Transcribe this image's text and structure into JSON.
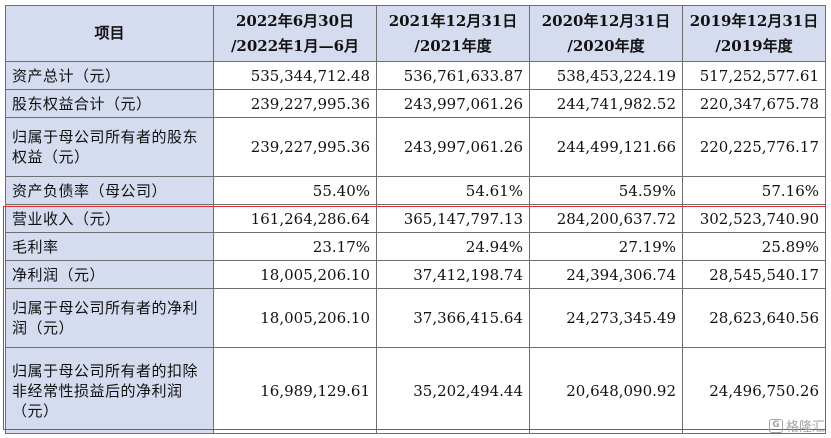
{
  "table": {
    "headers": [
      {
        "line1": "项目",
        "line2": ""
      },
      {
        "line1": "2022年6月30日",
        "line2": "/2022年1月—6月"
      },
      {
        "line1": "2021年12月31日",
        "line2": "/2021年度"
      },
      {
        "line1": "2020年12月31日",
        "line2": "/2020年度"
      },
      {
        "line1": "2019年12月31日",
        "line2": "/2019年度"
      }
    ],
    "rows": [
      {
        "label": "资产总计（元）",
        "values": [
          "535,344,712.48",
          "536,761,633.87",
          "538,453,224.19",
          "517,252,577.61"
        ]
      },
      {
        "label": "股东权益合计（元）",
        "values": [
          "239,227,995.36",
          "243,997,061.26",
          "244,741,982.52",
          "220,347,675.78"
        ]
      },
      {
        "label": "归属于母公司所有者的股东权益（元）",
        "values": [
          "239,227,995.36",
          "243,997,061.26",
          "244,499,121.66",
          "220,225,776.17"
        ]
      },
      {
        "label": "资产负债率（母公司）",
        "values": [
          "55.40%",
          "54.61%",
          "54.59%",
          "57.16%"
        ]
      },
      {
        "label": "营业收入（元）",
        "values": [
          "161,264,286.64",
          "365,147,797.13",
          "284,200,637.72",
          "302,523,740.90"
        ]
      },
      {
        "label": "毛利率",
        "values": [
          "23.17%",
          "24.94%",
          "27.19%",
          "25.89%"
        ]
      },
      {
        "label": "净利润（元）",
        "values": [
          "18,005,206.10",
          "37,412,198.74",
          "24,394,306.74",
          "28,545,540.17"
        ]
      },
      {
        "label": "归属于母公司所有者的净利润（元）",
        "values": [
          "18,005,206.10",
          "37,366,415.64",
          "24,273,345.49",
          "28,623,640.56"
        ]
      },
      {
        "label": "归属于母公司所有者的扣除非经常性损益后的净利润（元）",
        "values": [
          "16,989,129.61",
          "35,202,494.44",
          "20,648,090.92",
          "24,496,750.26"
        ]
      }
    ]
  },
  "highlight": {
    "color": "#e0303a"
  },
  "watermark": {
    "text": "格隆汇",
    "icon": "gelonghui-logo-icon"
  }
}
